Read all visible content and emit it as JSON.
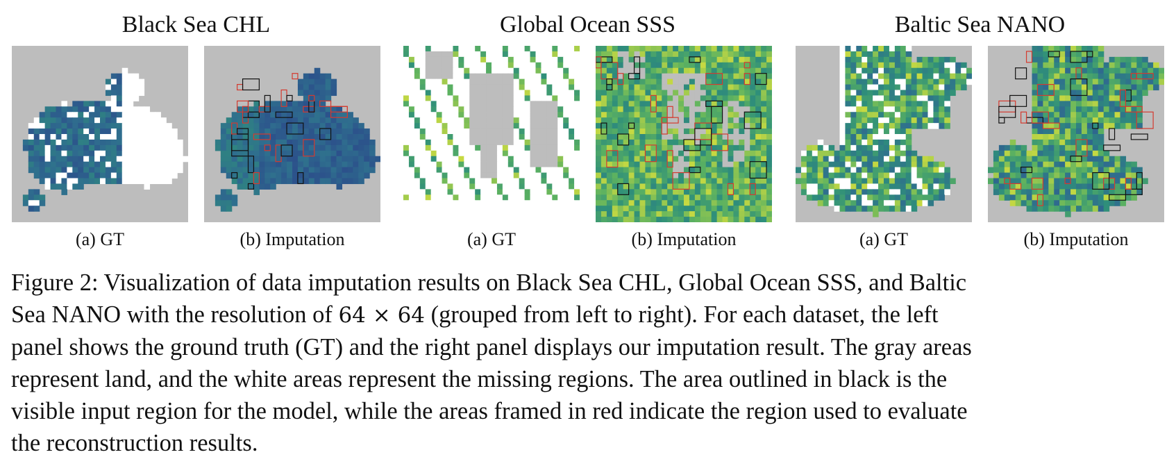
{
  "groups": [
    {
      "title": "Black Sea CHL",
      "gt_label": "(a) GT",
      "imp_label": "(b) Imputation"
    },
    {
      "title": "Global Ocean SSS",
      "gt_label": "(a) GT",
      "imp_label": "(b) Imputation"
    },
    {
      "title": "Baltic Sea NANO",
      "gt_label": "(a) GT",
      "imp_label": "(b) Imputation"
    }
  ],
  "caption": {
    "line1": "Figure 2: Visualization of data imputation results on Black Sea CHL, Global Ocean SSS, and Baltic",
    "line2_a": "Sea NANO with the resolution of ",
    "line2_math": "64 × 64",
    "line2_b": " (grouped from left to right). For each dataset, the left",
    "line3": "panel shows the ground truth (GT) and the right panel displays our imputation result. The gray areas",
    "line4": "represent land, and the white areas represent the missing regions. The area outlined in black is the",
    "line5": "visible input region for the model, while the areas framed in red indicate the region used to evaluate",
    "line6": "the reconstruction results."
  },
  "colors": {
    "land": "#bdbdbd",
    "missing": "#ffffff",
    "input_outline": "#111111",
    "eval_outline": "#d43a2f",
    "viridis_low": "#2b4a8a",
    "viridis_mid": "#2f8f7a",
    "viridis_high": "#e2e33a"
  }
}
